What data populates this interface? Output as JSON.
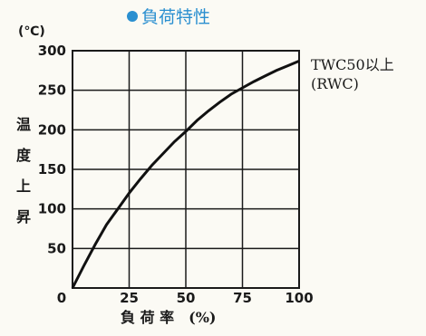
{
  "chart_data": {
    "type": "line",
    "title": "負荷特性",
    "ylabel": "温度上昇",
    "yunit": "(℃)",
    "xlabel": "負 荷 率　(%)",
    "xlim": [
      0,
      100
    ],
    "ylim": [
      0,
      300
    ],
    "xticks": [
      "0",
      "25",
      "50",
      "75",
      "100"
    ],
    "yticks": [
      "50",
      "100",
      "150",
      "200",
      "250",
      "300"
    ],
    "grid": true,
    "series": [
      {
        "name": "TWC50以上",
        "name_line2": "(RWC)",
        "x": [
          0,
          5,
          10,
          15,
          20,
          25,
          30,
          35,
          40,
          45,
          50,
          55,
          60,
          65,
          70,
          75,
          80,
          85,
          90,
          95,
          100
        ],
        "values": [
          0,
          28,
          55,
          80,
          100,
          120,
          138,
          155,
          170,
          185,
          198,
          212,
          224,
          235,
          245,
          253,
          261,
          268,
          275,
          281,
          287
        ]
      }
    ],
    "title_marker_color": "#2a8fd0",
    "line_color": "#111111"
  }
}
